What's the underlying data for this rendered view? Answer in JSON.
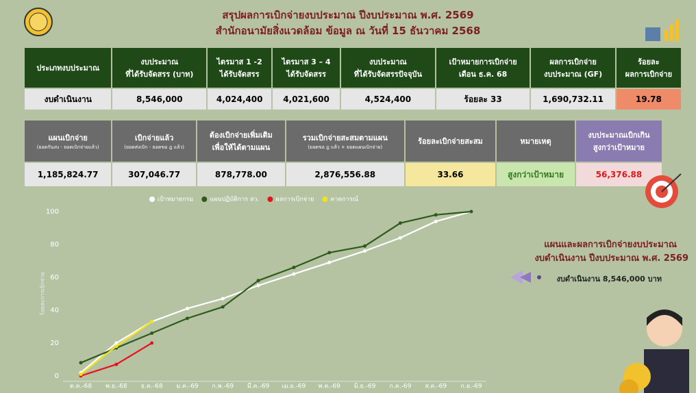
{
  "header": {
    "title": "สรุปผลการเบิกจ่ายงบประมาณ ปีงบประมาณ พ.ศ. 2569",
    "subtitle": "สำนักอนามัยสิ่งแวดล้อม ข้อมูล ณ วันที่ 15 ธันวาคม 2568"
  },
  "table1": {
    "headers": [
      "ประเภทงบประมาณ",
      "งบประมาณ\nที่ได้รับจัดสรร (บาท)",
      "ไตรมาส 1 -2\nได้รับจัดสรร",
      "ไตรมาส 3 – 4\nได้รับจัดสรร",
      "งบประมาณ\nที่ได้รับจัดสรรปัจจุบัน",
      "เป้าหมายการเบิกจ่าย\nเดือน ธ.ค. 68",
      "ผลการเบิกจ่าย\nงบประมาณ (GF)",
      "ร้อยละ\nผลการเบิกจ่าย"
    ],
    "row": [
      "งบดำเนินงาน",
      "8,546,000",
      "4,024,400",
      "4,021,600",
      "4,524,400",
      "ร้อยละ 33",
      "1,690,732.11",
      "19.78"
    ]
  },
  "table2": {
    "headers": [
      {
        "title": "แผนเบิกจ่าย",
        "note": "(ยอดกันงบ - ยอดเบิกจ่ายแล้ว)"
      },
      {
        "title": "เบิกจ่ายแล้ว",
        "note": "(ยอดส่งเบิก - ยอดขอ ฎ แล้ว)"
      },
      {
        "title": "ต้องเบิกจ่ายเพิ่มเติม\nเพื่อให้ได้ตามแผน"
      },
      {
        "title": "รวมเบิกจ่ายสะสมตามแผน",
        "note": "(ยอดขอ ฎ แล้ว + ยอดแผนเบิกจ่าย)"
      },
      {
        "title": "ร้อยละเบิกจ่ายสะสม"
      },
      {
        "title": "หมายเหตุ"
      },
      {
        "title": "งบประมาณเบิกเกิน\nสูงกว่าเป้าหมาย"
      }
    ],
    "row": [
      "1,185,824.77",
      "307,046.77",
      "878,778.00",
      "2,876,556.88",
      "33.66",
      "สูงกว่าเป้าหมาย",
      "56,376.88"
    ]
  },
  "side": {
    "title": "แผนและผลการเบิกจ่ายงบประมาณ",
    "subtitle": "งบดำเนินงาน ปีงบประมาณ พ.ศ. 2569",
    "note": "งบดำเนินงาน 8,546,000 บาท"
  },
  "chart_data": {
    "type": "line",
    "y_label": "ร้อยละการเบิกจ่าย",
    "categories": [
      "ต.ค.-68",
      "พ.ย.-68",
      "ธ.ค.-68",
      "ม.ค.-69",
      "ก.พ.-69",
      "มี.ค.-69",
      "เม.ย.-69",
      "พ.ค.-69",
      "มิ.ย.-69",
      "ก.ค.-69",
      "ส.ค.-69",
      "ก.ย.-69"
    ],
    "series": [
      {
        "name": "เป้าหมายกรม",
        "color": "#ffffff",
        "values": [
          2,
          20,
          33,
          41,
          47,
          55,
          62,
          69,
          76,
          84,
          94,
          100
        ]
      },
      {
        "name": "แผนปฏิบัติการ สว.",
        "color": "#2e5a1c",
        "values": [
          8,
          17,
          26,
          35,
          42,
          58,
          66,
          75,
          79,
          93,
          98,
          100
        ]
      },
      {
        "name": "ผลการเบิกจ่าย",
        "color": "#e8131a",
        "values": [
          0,
          7,
          20,
          null,
          null,
          null,
          null,
          null,
          null,
          null,
          null,
          null
        ]
      },
      {
        "name": "คาดการณ์",
        "color": "#f2e21a",
        "values": [
          1,
          18,
          33,
          null,
          null,
          null,
          null,
          null,
          null,
          null,
          null,
          null
        ]
      }
    ],
    "ylim": [
      0,
      100
    ],
    "yticks": [
      0,
      20,
      40,
      60,
      80,
      100
    ],
    "grid": false
  }
}
